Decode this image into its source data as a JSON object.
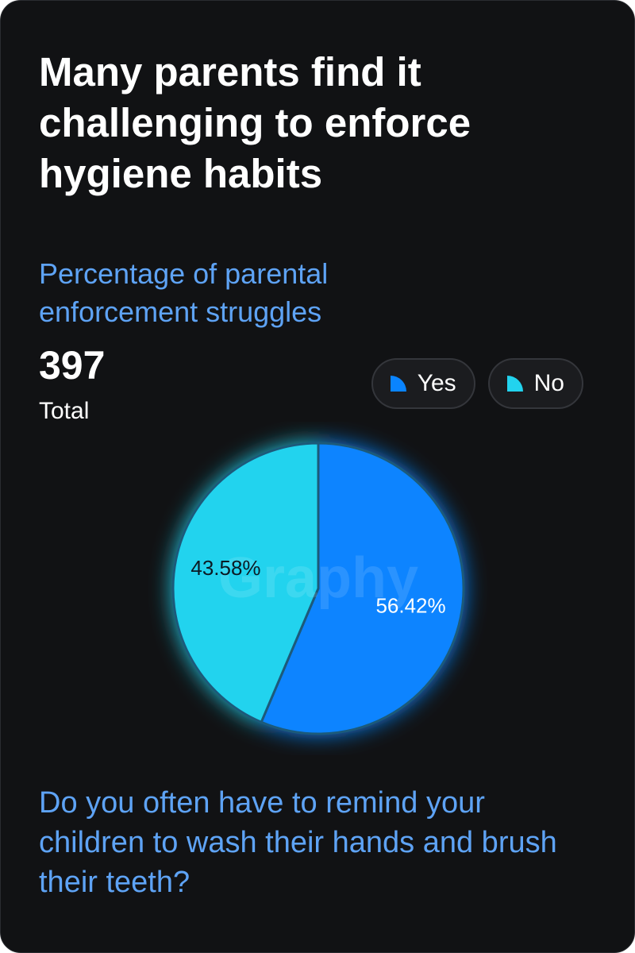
{
  "chart_data": {
    "type": "pie",
    "title": "Many parents find it challenging to enforce hygiene habits",
    "subtitle": "Percentage of parental enforcement struggles",
    "total": 397,
    "total_label": "Total",
    "categories": [
      "Yes",
      "No"
    ],
    "values": [
      56.42,
      43.58
    ],
    "value_labels": [
      "56.42%",
      "43.58%"
    ],
    "colors": [
      "#0a84ff",
      "#22d3ee"
    ],
    "watermark": "Graphy",
    "caption": "Do you often have to remind your children to wash their hands and brush their teeth?"
  }
}
